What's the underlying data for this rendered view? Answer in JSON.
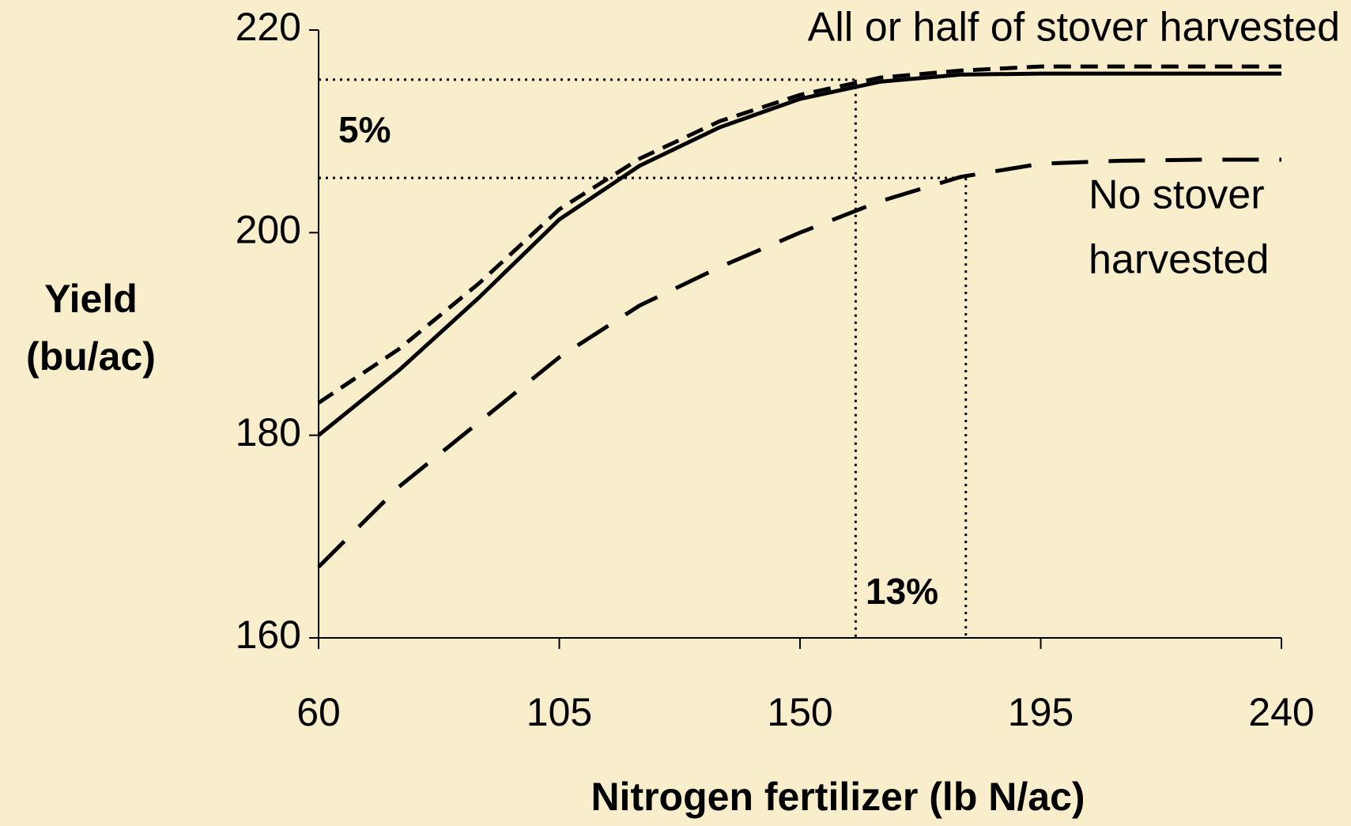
{
  "chart_data": {
    "type": "line",
    "x_label": "Nitrogen fertilizer (lb N/ac)",
    "y_label": [
      "Yield",
      "(bu/ac)"
    ],
    "x": [
      60,
      75,
      90,
      105,
      120,
      135,
      150,
      165,
      180,
      195,
      210,
      225,
      240
    ],
    "series": [
      {
        "color": "#000000",
        "style": "solid",
        "values": [
          180,
          186.4,
          193.6,
          201.3,
          206.6,
          210.4,
          213.2,
          214.9,
          215.6,
          215.7,
          215.7,
          215.7,
          215.7
        ]
      },
      {
        "color": "#000000",
        "style": "dashed",
        "values": [
          183.2,
          188.5,
          195,
          202.3,
          207.3,
          211,
          213.6,
          215.3,
          216,
          216.4,
          216.4,
          216.4,
          216.4
        ]
      },
      {
        "color": "#000000",
        "style": "longdash",
        "values": [
          167,
          174.9,
          181.3,
          187.7,
          192.8,
          196.6,
          200,
          203.1,
          205.5,
          206.8,
          207.1,
          207.2,
          207.2
        ]
      }
    ],
    "xlim": [
      60,
      240
    ],
    "xticks": [
      60,
      105,
      150,
      195,
      240
    ],
    "ylim": [
      160,
      220
    ],
    "yticks": [
      160,
      180,
      200,
      220
    ],
    "grid": false,
    "reference_lines": {
      "y": [
        215.1,
        205.4
      ],
      "x": [
        160.4,
        181
      ]
    },
    "annotations": {
      "top_series": "All or half of stover harvested",
      "bottom_series": [
        "No stover",
        "harvested"
      ],
      "yield_gap": "5%",
      "nitrogen_gap": "13%"
    }
  }
}
